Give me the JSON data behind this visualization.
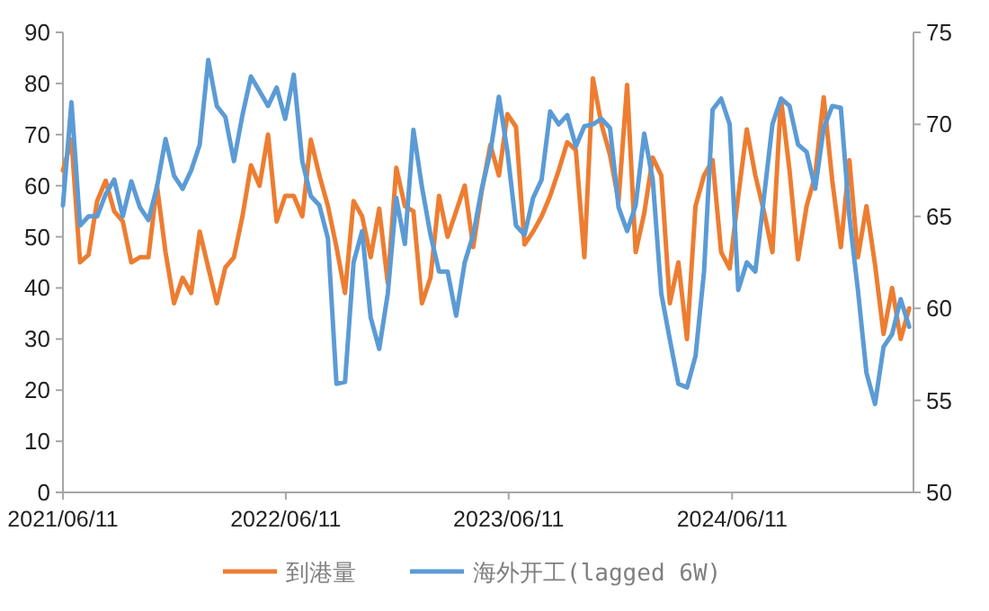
{
  "chart_data": {
    "type": "line",
    "x": [
      "2021-06-11",
      "2021-06-25",
      "2021-07-09",
      "2021-07-23",
      "2021-08-06",
      "2021-08-20",
      "2021-09-03",
      "2021-09-17",
      "2021-10-01",
      "2021-10-15",
      "2021-10-29",
      "2021-11-12",
      "2021-11-26",
      "2021-12-10",
      "2021-12-24",
      "2022-01-07",
      "2022-01-21",
      "2022-02-04",
      "2022-02-18",
      "2022-03-04",
      "2022-03-18",
      "2022-04-01",
      "2022-04-15",
      "2022-04-29",
      "2022-05-13",
      "2022-05-27",
      "2022-06-10",
      "2022-06-24",
      "2022-07-08",
      "2022-07-22",
      "2022-08-05",
      "2022-08-19",
      "2022-09-02",
      "2022-09-16",
      "2022-09-30",
      "2022-10-14",
      "2022-10-28",
      "2022-11-11",
      "2022-11-25",
      "2022-12-09",
      "2022-12-23",
      "2023-01-06",
      "2023-01-20",
      "2023-02-03",
      "2023-02-17",
      "2023-03-03",
      "2023-03-17",
      "2023-03-31",
      "2023-04-14",
      "2023-04-28",
      "2023-05-12",
      "2023-05-26",
      "2023-06-09",
      "2023-06-23",
      "2023-07-07",
      "2023-07-21",
      "2023-08-04",
      "2023-08-18",
      "2023-09-01",
      "2023-09-15",
      "2023-09-29",
      "2023-10-13",
      "2023-10-27",
      "2023-11-10",
      "2023-11-24",
      "2023-12-08",
      "2023-12-22",
      "2024-01-05",
      "2024-01-19",
      "2024-02-02",
      "2024-02-16",
      "2024-03-01",
      "2024-03-15",
      "2024-03-29",
      "2024-04-12",
      "2024-04-26",
      "2024-05-10",
      "2024-05-24",
      "2024-06-07",
      "2024-06-21",
      "2024-07-05",
      "2024-07-19",
      "2024-08-02",
      "2024-08-16",
      "2024-08-30",
      "2024-09-13",
      "2024-09-27",
      "2024-10-11",
      "2024-10-25",
      "2024-11-08",
      "2024-11-22",
      "2024-12-06",
      "2024-12-20",
      "2025-01-03",
      "2025-01-17",
      "2025-01-31",
      "2025-02-14",
      "2025-02-28",
      "2025-03-14",
      "2025-03-28"
    ],
    "series": [
      {
        "name": "到港量",
        "color": "#ed7d31",
        "values": [
          63,
          69,
          45,
          46.5,
          57,
          61,
          55,
          53,
          45,
          46,
          46,
          60,
          47,
          37,
          42,
          39,
          51,
          44,
          37,
          44,
          46,
          54,
          64,
          60,
          70,
          53,
          58,
          58,
          54,
          69,
          62,
          56,
          48,
          39,
          57,
          54,
          46,
          55.5,
          41,
          63.5,
          56,
          55,
          37,
          42,
          58,
          50,
          55,
          60,
          48,
          59,
          68,
          62,
          74,
          71.5,
          48.5,
          51,
          54,
          58,
          63,
          68.5,
          67,
          46,
          81,
          72,
          66,
          57,
          79.7,
          47,
          54.6,
          65.5,
          62,
          37,
          45,
          30,
          56,
          62,
          65,
          47,
          43.8,
          58,
          71,
          62,
          55,
          47,
          77,
          63,
          45.6,
          56,
          62,
          77.3,
          61,
          48,
          65,
          46,
          56,
          44.6,
          31,
          40,
          30,
          36
        ]
      },
      {
        "name": "海外开工(lagged 6W)",
        "color": "#5b9bd5",
        "axis": "y2",
        "values": [
          65.6,
          71.2,
          64.5,
          65,
          65,
          66.2,
          67,
          65,
          66.9,
          65.5,
          64.8,
          66.6,
          69.2,
          67.2,
          66.5,
          67.5,
          68.9,
          73.5,
          71,
          70.4,
          68,
          70.5,
          72.6,
          71.8,
          71,
          72,
          70.3,
          72.7,
          68,
          66.1,
          65.6,
          63.8,
          55.9,
          56,
          62.5,
          64.2,
          59.5,
          57.8,
          60.8,
          66,
          63.5,
          69.7,
          66.6,
          64,
          62,
          62,
          59.6,
          62.5,
          64,
          66.5,
          68.5,
          71.5,
          68.5,
          64.5,
          64,
          66,
          67,
          70.7,
          70,
          70.5,
          68.8,
          69.9,
          70,
          70.3,
          69.8,
          65.5,
          64.2,
          65.6,
          69.5,
          67,
          60.8,
          58.3,
          55.9,
          55.7,
          57.4,
          62,
          70.8,
          71.4,
          70,
          61,
          62.5,
          62,
          66,
          70,
          71.4,
          71,
          68.9,
          68.5,
          66.5,
          69.8,
          71,
          70.9,
          65,
          61,
          56.5,
          54.8,
          57.9,
          58.6,
          60.5,
          59
        ]
      }
    ],
    "xlim": [
      "2021-06-11",
      "2025-04-04"
    ],
    "xticks": [
      {
        "value": "2021-06-11",
        "label": "2021/06/11"
      },
      {
        "value": "2022-06-11",
        "label": "2022/06/11"
      },
      {
        "value": "2023-06-11",
        "label": "2023/06/11"
      },
      {
        "value": "2024-06-11",
        "label": "2024/06/11"
      }
    ],
    "ylim": [
      0,
      90
    ],
    "yticks": [
      0,
      10,
      20,
      30,
      40,
      50,
      60,
      70,
      80,
      90
    ],
    "y2lim": [
      50,
      75
    ],
    "y2ticks": [
      50,
      55,
      60,
      65,
      70,
      75
    ],
    "legend": "bottom",
    "grid": false
  }
}
